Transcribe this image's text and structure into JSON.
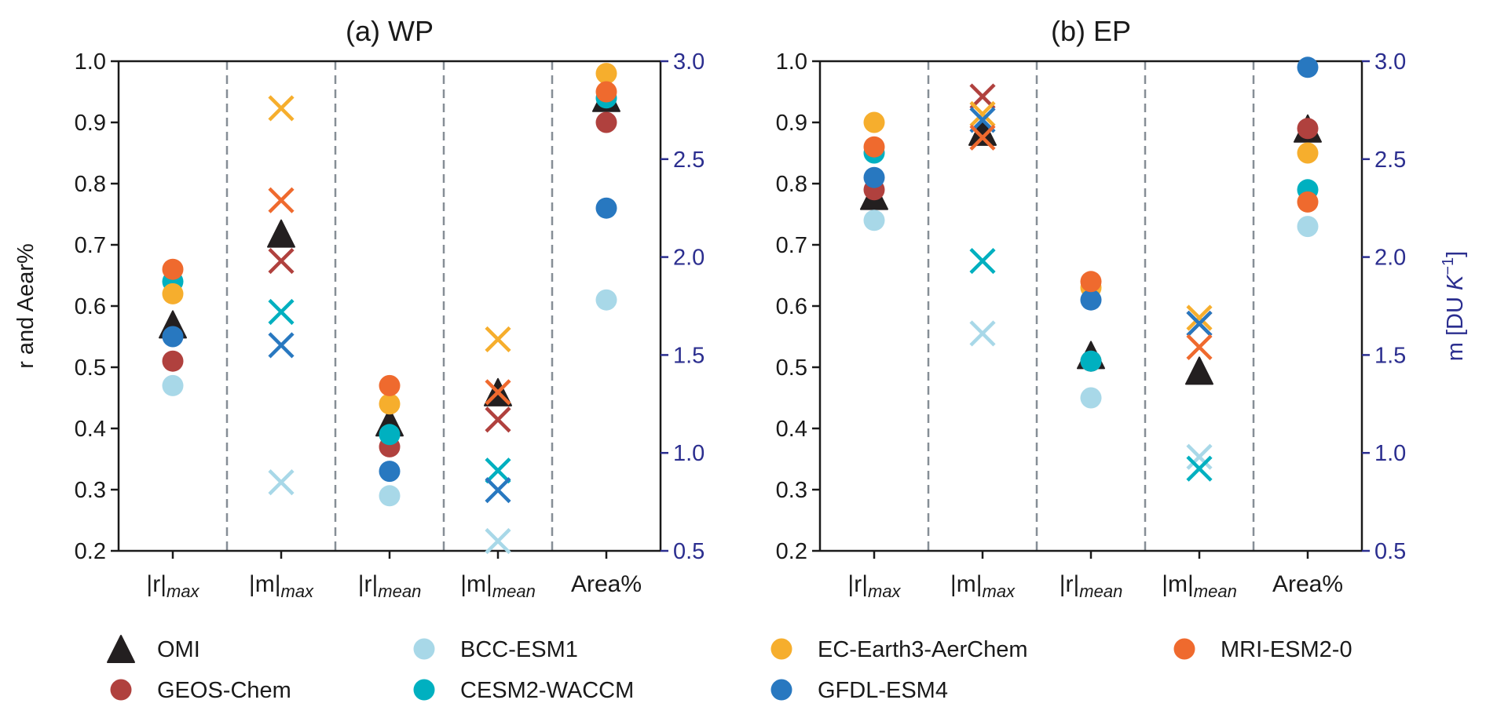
{
  "chart_data": {
    "type": "scatter",
    "series_names": [
      "OMI",
      "GEOS-Chem",
      "BCC-ESM1",
      "CESM2-WACCM",
      "EC-Earth3-AerChem",
      "GFDL-ESM4",
      "MRI-ESM2-0"
    ],
    "series_colors": [
      "#231f20",
      "#b0413e",
      "#a8d8e8",
      "#00b0c0",
      "#f6ae2d",
      "#2878c0",
      "#ef6a2e"
    ],
    "series_markers": [
      "triangle",
      "circle",
      "circle",
      "circle",
      "circle",
      "circle",
      "circle"
    ],
    "categories": [
      {
        "base": "|r|",
        "sub": "max",
        "axis": "left"
      },
      {
        "base": "|m|",
        "sub": "max",
        "axis": "right"
      },
      {
        "base": "|r|",
        "sub": "mean",
        "axis": "left"
      },
      {
        "base": "|m|",
        "sub": "mean",
        "axis": "right"
      },
      {
        "base": "Area%",
        "sub": "",
        "axis": "left"
      }
    ],
    "ylabel": "r and Aear%",
    "ylabel_right": {
      "text": "m [DU ",
      "unit": "K",
      "exp": "−1",
      "close": "]"
    },
    "ylim": [
      0.2,
      1.0
    ],
    "ylim_right": [
      0.5,
      3.0
    ],
    "yticks": [
      "0.2",
      "0.3",
      "0.4",
      "0.5",
      "0.6",
      "0.7",
      "0.8",
      "0.9",
      "1.0"
    ],
    "yticks_right": [
      "0.5",
      "1.0",
      "1.5",
      "2.0",
      "2.5",
      "3.0"
    ],
    "right_axis_color": "#2b2e8f",
    "grid": false,
    "legend_placement": "bottom",
    "panels": [
      {
        "title": "(a) WP",
        "values": [
          [
            0.57,
            2.12,
            0.41,
            1.31,
            0.94
          ],
          [
            0.51,
            1.98,
            0.37,
            1.17,
            0.9
          ],
          [
            0.47,
            0.85,
            0.29,
            0.55,
            0.61
          ],
          [
            0.64,
            1.72,
            0.39,
            0.91,
            0.94
          ],
          [
            0.62,
            2.76,
            0.44,
            1.58,
            0.98
          ],
          [
            0.55,
            1.55,
            0.33,
            0.81,
            0.76
          ],
          [
            0.66,
            2.29,
            0.47,
            1.31,
            0.95
          ]
        ]
      },
      {
        "title": "(b) EP",
        "values": [
          [
            0.78,
            2.64,
            0.52,
            1.42,
            0.89
          ],
          [
            0.79,
            2.82,
            0.51,
            1.66,
            0.89
          ],
          [
            0.74,
            1.61,
            0.45,
            0.98,
            0.73
          ],
          [
            0.85,
            1.98,
            0.51,
            0.92,
            0.79
          ],
          [
            0.9,
            2.73,
            0.63,
            1.69,
            0.85
          ],
          [
            0.81,
            2.7,
            0.61,
            1.66,
            0.99
          ],
          [
            0.86,
            2.61,
            0.64,
            1.54,
            0.77
          ]
        ]
      }
    ]
  }
}
